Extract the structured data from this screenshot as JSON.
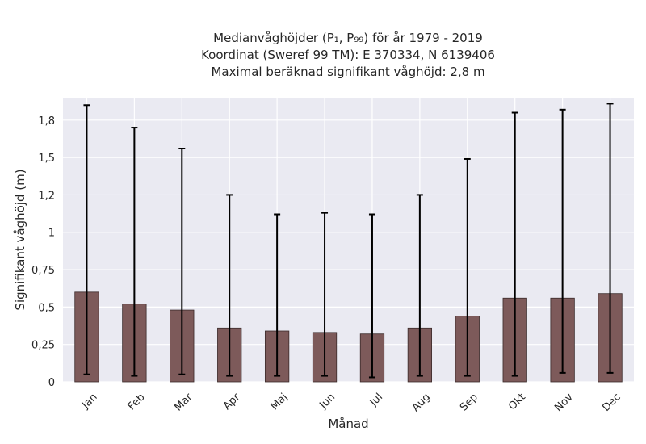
{
  "chart_data": {
    "type": "bar",
    "title_lines": [
      "Medianvåghöjder (P₁, P₉₉) för år 1979 - 2019",
      "Koordinat (Sweref 99 TM): E 370334, N 6139406",
      "Maximal beräknad signifikant våghöjd: 2,8 m"
    ],
    "xlabel": "Månad",
    "ylabel": "Signifikant våghöjd (m)",
    "categories": [
      "Jan",
      "Feb",
      "Mar",
      "Apr",
      "Maj",
      "Jun",
      "Jul",
      "Aug",
      "Sep",
      "Okt",
      "Nov",
      "Dec"
    ],
    "values": [
      0.6,
      0.52,
      0.48,
      0.36,
      0.34,
      0.33,
      0.32,
      0.36,
      0.44,
      0.56,
      0.56,
      0.59
    ],
    "p1": [
      0.05,
      0.04,
      0.05,
      0.04,
      0.04,
      0.04,
      0.03,
      0.04,
      0.04,
      0.04,
      0.06,
      0.06
    ],
    "p99": [
      1.85,
      1.7,
      1.56,
      1.25,
      1.12,
      1.13,
      1.12,
      1.25,
      1.49,
      1.8,
      1.82,
      1.86
    ],
    "ylim": [
      0,
      1.9
    ],
    "yticks": [
      0,
      0.25,
      0.5,
      0.75,
      1,
      1.25,
      1.5,
      1.75
    ],
    "ytick_labels": [
      "0",
      "0,25",
      "0,5",
      "0,75",
      "1",
      "1,2",
      "1,5",
      "1,8"
    ],
    "grid": true,
    "colors": {
      "bar": "#7d5a5a",
      "bar_edge": "#3a2a2a",
      "background": "#eaeaf2",
      "grid": "#ffffff",
      "errorbar": "#000000"
    }
  }
}
